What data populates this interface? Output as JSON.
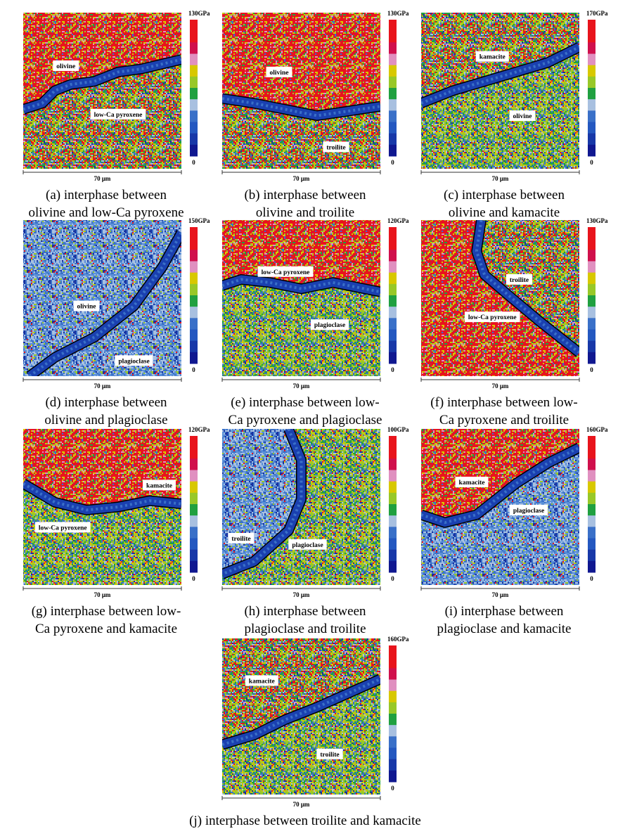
{
  "panels": [
    {
      "max_label": "130GPa",
      "min_label": "0",
      "scale": "70 μm",
      "phases": [
        "olivine",
        "low-Ca pyroxene"
      ],
      "caption": [
        "(a) interphase between",
        "olivine and low-Ca pyroxene"
      ]
    },
    {
      "max_label": "130GPa",
      "min_label": "0",
      "scale": "70 μm",
      "phases": [
        "olivine",
        "troilite"
      ],
      "caption": [
        "(b) interphase between",
        "olivine and troilite"
      ]
    },
    {
      "max_label": "170GPa",
      "min_label": "0",
      "scale": "70 μm",
      "phases": [
        "kamacite",
        "olivine"
      ],
      "caption": [
        "(c) interphase between",
        "olivine and kamacite"
      ]
    },
    {
      "max_label": "150GPa",
      "min_label": "0",
      "scale": "70 μm",
      "phases": [
        "olivine",
        "plagioclase"
      ],
      "caption": [
        "(d) interphase between",
        "olivine and plagioclase"
      ]
    },
    {
      "max_label": "120GPa",
      "min_label": "0",
      "scale": "70 μm",
      "phases": [
        "low-Ca pyroxene",
        "plagioclase"
      ],
      "caption": [
        "(e) interphase between low-",
        "Ca pyroxene and plagioclase"
      ]
    },
    {
      "max_label": "130GPa",
      "min_label": "0",
      "scale": "70 μm",
      "phases": [
        "troilite",
        "low-Ca pyroxene"
      ],
      "caption": [
        "(f) interphase between low-",
        "Ca pyroxene and troilite"
      ]
    },
    {
      "max_label": "120GPa",
      "min_label": "0",
      "scale": "70 μm",
      "phases": [
        "kamacite",
        "low-Ca pyroxene"
      ],
      "caption": [
        "(g) interphase between low-",
        "Ca pyroxene and kamacite"
      ]
    },
    {
      "max_label": "100GPa",
      "min_label": "0",
      "scale": "70 μm",
      "phases": [
        "troilite",
        "plagioclase"
      ],
      "caption": [
        "(h) interphase between",
        "plagioclase and troilite"
      ]
    },
    {
      "max_label": "160GPa",
      "min_label": "0",
      "scale": "70 μm",
      "phases": [
        "kamacite",
        "plagioclase"
      ],
      "caption": [
        "(i) interphase between",
        "plagioclase and kamacite"
      ]
    },
    {
      "max_label": "160GPa",
      "min_label": "0",
      "scale": "70 μm",
      "phases": [
        "kamacite",
        "troilite"
      ],
      "caption": [
        "(j) interphase between troilite and kamacite"
      ]
    }
  ]
}
